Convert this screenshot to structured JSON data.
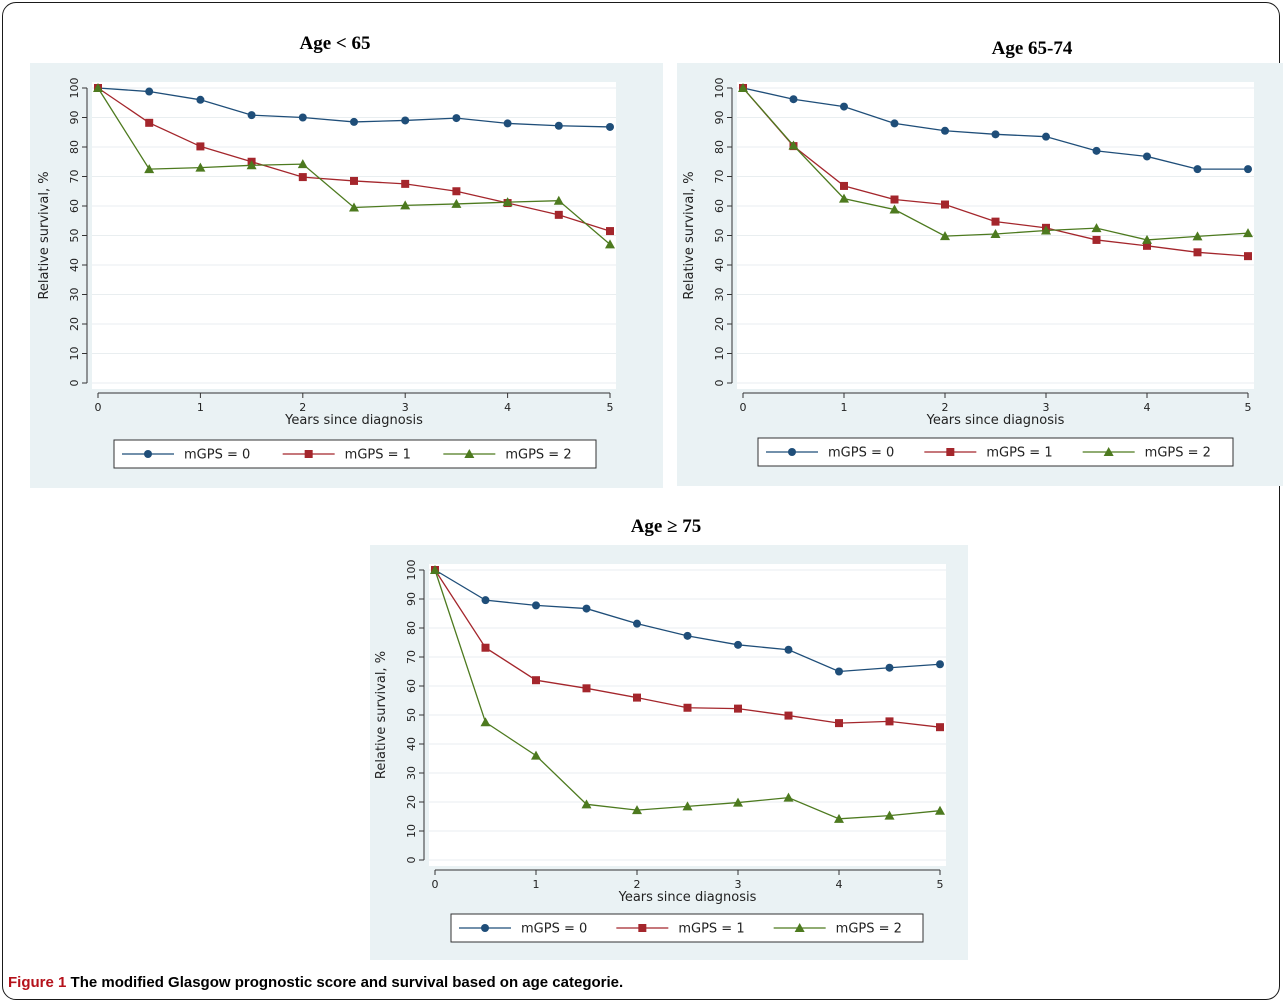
{
  "figure": {
    "caption_label": "Figure 1",
    "caption_text": " The modified Glasgow prognostic score and survival based on age categorie."
  },
  "colors": {
    "mgps0": "#1f4e79",
    "mgps1": "#a4262c",
    "mgps2": "#4d7a1f",
    "panel_bg": "#eaf2f4"
  },
  "chart_data": [
    {
      "type": "line",
      "title": "Age < 65",
      "xlabel": "Years since diagnosis",
      "ylabel": "Relative survival, %",
      "xlim": [
        0,
        5
      ],
      "ylim": [
        0,
        100
      ],
      "xticks": [
        "0",
        "1",
        "2",
        "3",
        "4",
        "5"
      ],
      "yticks": [
        "0",
        "10",
        "20",
        "30",
        "40",
        "50",
        "60",
        "70",
        "80",
        "90",
        "100"
      ],
      "grid": true,
      "legend_position": "bottom",
      "x": [
        0,
        0.5,
        1,
        1.5,
        2,
        2.5,
        3,
        3.5,
        4,
        4.5,
        5
      ],
      "series": [
        {
          "name": "mGPS = 0",
          "marker": "circle",
          "values": [
            100,
            98.8,
            96,
            90.8,
            90,
            88.5,
            89,
            89.8,
            88,
            87.2,
            86.8
          ]
        },
        {
          "name": "mGPS = 1",
          "marker": "square",
          "values": [
            100,
            88.2,
            80.2,
            75,
            69.8,
            68.5,
            67.5,
            65,
            61,
            57,
            51.5
          ]
        },
        {
          "name": "mGPS = 2",
          "marker": "triangle",
          "values": [
            100,
            72.5,
            73,
            73.8,
            74.2,
            59.5,
            60.2,
            60.7,
            61.3,
            61.8,
            47
          ]
        }
      ]
    },
    {
      "type": "line",
      "title": "Age 65-74",
      "xlabel": "Years since diagnosis",
      "ylabel": "Relative survival, %",
      "xlim": [
        0,
        5
      ],
      "ylim": [
        0,
        100
      ],
      "xticks": [
        "0",
        "1",
        "2",
        "3",
        "4",
        "5"
      ],
      "yticks": [
        "0",
        "10",
        "20",
        "30",
        "40",
        "50",
        "60",
        "70",
        "80",
        "90",
        "100"
      ],
      "grid": true,
      "legend_position": "bottom",
      "x": [
        0,
        0.5,
        1,
        1.5,
        2,
        2.5,
        3,
        3.5,
        4,
        4.5,
        5
      ],
      "series": [
        {
          "name": "mGPS = 0",
          "marker": "circle",
          "values": [
            100,
            96.2,
            93.7,
            88,
            85.5,
            84.3,
            83.5,
            78.7,
            76.8,
            72.5,
            72.5
          ]
        },
        {
          "name": "mGPS = 1",
          "marker": "square",
          "values": [
            100,
            80.3,
            66.8,
            62.2,
            60.5,
            54.7,
            52.6,
            48.5,
            46.5,
            44.3,
            43
          ]
        },
        {
          "name": "mGPS = 2",
          "marker": "triangle",
          "values": [
            100,
            80.5,
            62.5,
            58.8,
            49.8,
            50.5,
            51.7,
            52.5,
            48.5,
            49.7,
            50.8
          ]
        }
      ]
    },
    {
      "type": "line",
      "title": "Age ≥ 75",
      "xlabel": "Years since diagnosis",
      "ylabel": "Relative survival, %",
      "xlim": [
        0,
        5
      ],
      "ylim": [
        0,
        100
      ],
      "xticks": [
        "0",
        "1",
        "2",
        "3",
        "4",
        "5"
      ],
      "yticks": [
        "0",
        "10",
        "20",
        "30",
        "40",
        "50",
        "60",
        "70",
        "80",
        "90",
        "100"
      ],
      "grid": true,
      "legend_position": "bottom",
      "x": [
        0,
        0.5,
        1,
        1.5,
        2,
        2.5,
        3,
        3.5,
        4,
        4.5,
        5
      ],
      "series": [
        {
          "name": "mGPS = 0",
          "marker": "circle",
          "values": [
            100,
            89.6,
            87.8,
            86.7,
            81.5,
            77.3,
            74.2,
            72.5,
            65,
            66.3,
            67.5
          ]
        },
        {
          "name": "mGPS = 1",
          "marker": "square",
          "values": [
            100,
            73.2,
            62,
            59.2,
            56,
            52.5,
            52.2,
            49.8,
            47.2,
            47.8,
            45.8
          ]
        },
        {
          "name": "mGPS = 2",
          "marker": "triangle",
          "values": [
            100,
            47.5,
            36,
            19.2,
            17.2,
            18.5,
            19.8,
            21.5,
            14.2,
            15.3,
            17
          ]
        }
      ]
    }
  ]
}
